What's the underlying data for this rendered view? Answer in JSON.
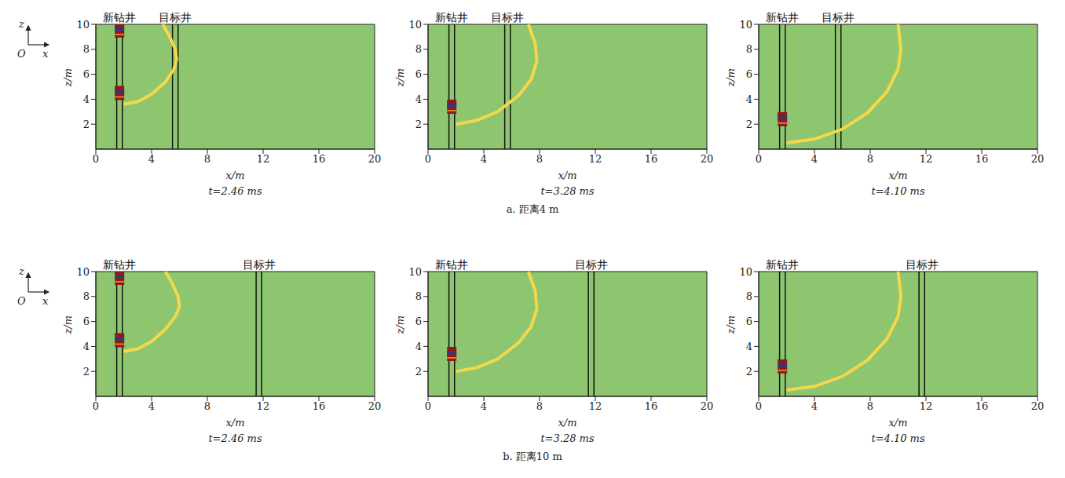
{
  "axis_icon": {
    "z": "z",
    "origin": "O",
    "x": "x"
  },
  "captions": [
    "a. 距离4 m",
    "b. 距离10 m"
  ],
  "chart_data": [
    {
      "type": "line",
      "title": "t=2.46 ms",
      "xlabel": "x/m",
      "ylabel": "z/m",
      "xlim": [
        0,
        20
      ],
      "xticks": [
        0,
        4,
        8,
        12,
        16,
        20
      ],
      "ylim": [
        0,
        10
      ],
      "yticks": [
        2,
        4,
        6,
        8,
        10
      ],
      "color": "#8dc66f",
      "wells": [
        {
          "name": "新钻井",
          "x": [
            1.5,
            1.9
          ]
        },
        {
          "name": "目标井",
          "x": [
            5.5,
            5.9
          ]
        }
      ],
      "front": {
        "color": "#f2d84a",
        "x": [
          2.0,
          3.0,
          4.0,
          5.0,
          5.6,
          5.8,
          5.7,
          5.3,
          4.8
        ],
        "z": [
          3.6,
          3.8,
          4.4,
          5.4,
          6.4,
          7.2,
          8.0,
          9.0,
          10.0
        ]
      },
      "sources": {
        "color": "#8b1a1a",
        "x": [
          1.7,
          1.7
        ],
        "z": [
          9.5,
          4.5
        ]
      }
    },
    {
      "type": "line",
      "title": "t=3.28 ms",
      "xlabel": "x/m",
      "ylabel": "z/m",
      "xlim": [
        0,
        20
      ],
      "xticks": [
        0,
        4,
        8,
        12,
        16,
        20
      ],
      "ylim": [
        0,
        10
      ],
      "yticks": [
        2,
        4,
        6,
        8,
        10
      ],
      "color": "#8dc66f",
      "wells": [
        {
          "name": "新钻井",
          "x": [
            1.5,
            1.9
          ]
        },
        {
          "name": "目标井",
          "x": [
            5.5,
            5.9
          ]
        }
      ],
      "front": {
        "color": "#f2d84a",
        "x": [
          2.0,
          3.5,
          5.0,
          6.5,
          7.4,
          7.8,
          7.7,
          7.2
        ],
        "z": [
          2.0,
          2.3,
          3.0,
          4.3,
          5.6,
          7.0,
          8.4,
          10.0
        ]
      },
      "sources": {
        "color": "#8b1a1a",
        "x": [
          1.7
        ],
        "z": [
          3.4
        ]
      }
    },
    {
      "type": "line",
      "title": "t=4.10 ms",
      "xlabel": "x/m",
      "ylabel": "z/m",
      "xlim": [
        0,
        20
      ],
      "xticks": [
        0,
        4,
        8,
        12,
        16,
        20
      ],
      "ylim": [
        0,
        10
      ],
      "yticks": [
        2,
        4,
        6,
        8,
        10
      ],
      "color": "#8dc66f",
      "wells": [
        {
          "name": "新钻井",
          "x": [
            1.5,
            1.9
          ]
        },
        {
          "name": "目标井",
          "x": [
            5.5,
            5.9
          ]
        }
      ],
      "front": {
        "color": "#f2d84a",
        "x": [
          2.0,
          4.0,
          6.0,
          7.8,
          9.2,
          10.0,
          10.2,
          10.0
        ],
        "z": [
          0.5,
          0.8,
          1.6,
          2.9,
          4.6,
          6.4,
          8.0,
          10.0
        ]
      },
      "sources": {
        "color": "#8b1a1a",
        "x": [
          1.7
        ],
        "z": [
          2.4
        ]
      }
    },
    {
      "type": "line",
      "title": "t=2.46 ms",
      "xlabel": "x/m",
      "ylabel": "z/m",
      "xlim": [
        0,
        20
      ],
      "xticks": [
        0,
        4,
        8,
        12,
        16,
        20
      ],
      "ylim": [
        0,
        10
      ],
      "yticks": [
        2,
        4,
        6,
        8,
        10
      ],
      "color": "#8dc66f",
      "wells": [
        {
          "name": "新钻井",
          "x": [
            1.5,
            1.9
          ]
        },
        {
          "name": "目标井",
          "x": [
            11.5,
            11.9
          ]
        }
      ],
      "front": {
        "color": "#f2d84a",
        "x": [
          2.0,
          3.0,
          4.0,
          5.0,
          5.7,
          6.0,
          5.9,
          5.5,
          5.0
        ],
        "z": [
          3.6,
          3.8,
          4.4,
          5.4,
          6.4,
          7.2,
          8.0,
          9.0,
          10.0
        ]
      },
      "sources": {
        "color": "#8b1a1a",
        "x": [
          1.7,
          1.7
        ],
        "z": [
          9.5,
          4.5
        ]
      }
    },
    {
      "type": "line",
      "title": "t=3.28 ms",
      "xlabel": "x/m",
      "ylabel": "z/m",
      "xlim": [
        0,
        20
      ],
      "xticks": [
        0,
        4,
        8,
        12,
        16,
        20
      ],
      "ylim": [
        0,
        10
      ],
      "yticks": [
        2,
        4,
        6,
        8,
        10
      ],
      "color": "#8dc66f",
      "wells": [
        {
          "name": "新钻井",
          "x": [
            1.5,
            1.9
          ]
        },
        {
          "name": "目标井",
          "x": [
            11.5,
            11.9
          ]
        }
      ],
      "front": {
        "color": "#f2d84a",
        "x": [
          2.0,
          3.5,
          5.0,
          6.5,
          7.4,
          7.8,
          7.7,
          7.2
        ],
        "z": [
          2.0,
          2.3,
          3.0,
          4.3,
          5.6,
          7.0,
          8.4,
          10.0
        ]
      },
      "sources": {
        "color": "#8b1a1a",
        "x": [
          1.7
        ],
        "z": [
          3.4
        ]
      }
    },
    {
      "type": "line",
      "title": "t=4.10 ms",
      "xlabel": "x/m",
      "ylabel": "z/m",
      "xlim": [
        0,
        20
      ],
      "xticks": [
        0,
        4,
        8,
        12,
        16,
        20
      ],
      "ylim": [
        0,
        10
      ],
      "yticks": [
        2,
        4,
        6,
        8,
        10
      ],
      "color": "#8dc66f",
      "wells": [
        {
          "name": "新钻井",
          "x": [
            1.5,
            1.9
          ]
        },
        {
          "name": "目标井",
          "x": [
            11.5,
            11.9
          ]
        }
      ],
      "front": {
        "color": "#f2d84a",
        "x": [
          2.0,
          4.0,
          6.0,
          7.8,
          9.2,
          10.0,
          10.2,
          10.0
        ],
        "z": [
          0.5,
          0.8,
          1.6,
          2.9,
          4.6,
          6.4,
          8.0,
          10.0
        ]
      },
      "sources": {
        "color": "#8b1a1a",
        "x": [
          1.7
        ],
        "z": [
          2.4
        ]
      }
    }
  ]
}
